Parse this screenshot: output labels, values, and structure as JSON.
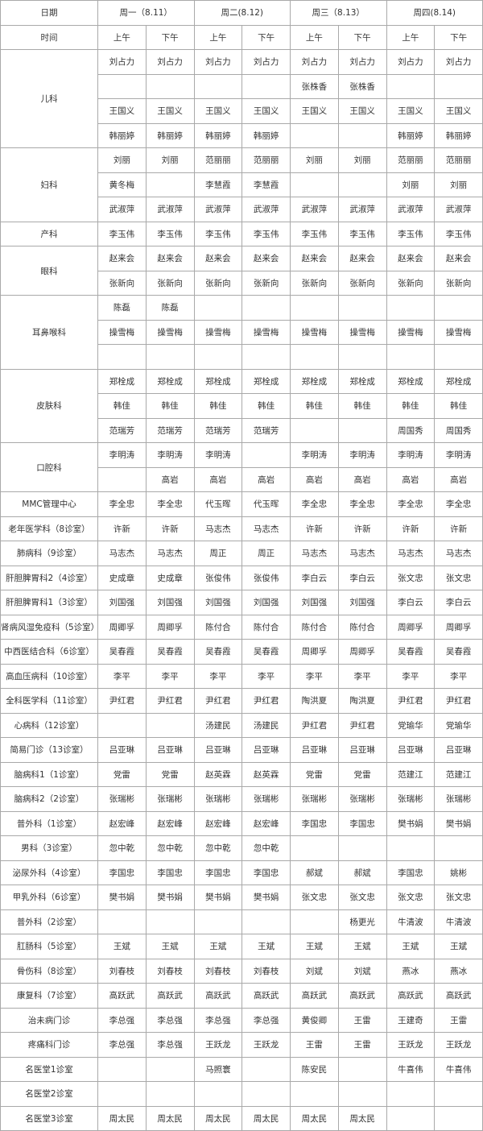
{
  "header": {
    "date_label": "日期",
    "days": [
      "周一（8.11）",
      "周二(8.12)",
      "周三（8.13）",
      "周四(8.14)"
    ],
    "time_label": "时间",
    "periods": [
      "上午",
      "下午",
      "上午",
      "下午",
      "上午",
      "下午",
      "上午",
      "下午"
    ]
  },
  "groups": [
    {
      "dept": "儿科",
      "rows": [
        [
          "刘占力",
          "刘占力",
          "刘占力",
          "刘占力",
          "刘占力",
          "刘占力",
          "刘占力",
          "刘占力"
        ],
        [
          "",
          "",
          "",
          "",
          "张株香",
          "张株香",
          "",
          ""
        ],
        [
          "王国义",
          "王国义",
          "王国义",
          "王国义",
          "王国义",
          "王国义",
          "王国义",
          "王国义"
        ],
        [
          "韩丽婷",
          "韩丽婷",
          "韩丽婷",
          "韩丽婷",
          "",
          "",
          "韩丽婷",
          "韩丽婷"
        ]
      ]
    },
    {
      "dept": "妇科",
      "rows": [
        [
          "刘丽",
          "刘丽",
          "范丽丽",
          "范丽丽",
          "刘丽",
          "刘丽",
          "范丽丽",
          "范丽丽"
        ],
        [
          "黄冬梅",
          "",
          "李慧霞",
          "李慧霞",
          "",
          "",
          "刘丽",
          "刘丽"
        ],
        [
          "武淑萍",
          "武淑萍",
          "武淑萍",
          "武淑萍",
          "武淑萍",
          "武淑萍",
          "武淑萍",
          "武淑萍"
        ]
      ]
    },
    {
      "dept": "产科",
      "rows": [
        [
          "李玉伟",
          "李玉伟",
          "李玉伟",
          "李玉伟",
          "李玉伟",
          "李玉伟",
          "李玉伟",
          "李玉伟"
        ]
      ]
    },
    {
      "dept": "眼科",
      "rows": [
        [
          "赵来会",
          "赵来会",
          "赵来会",
          "赵来会",
          "赵来会",
          "赵来会",
          "赵来会",
          "赵来会"
        ],
        [
          "张新向",
          "张新向",
          "张新向",
          "张新向",
          "张新向",
          "张新向",
          "张新向",
          "张新向"
        ]
      ]
    },
    {
      "dept": "耳鼻喉科",
      "rows": [
        [
          "陈磊",
          "陈磊",
          "",
          "",
          "",
          "",
          "",
          ""
        ],
        [
          "操雪梅",
          "操雪梅",
          "操雪梅",
          "操雪梅",
          "操雪梅",
          "操雪梅",
          "操雪梅",
          "操雪梅"
        ],
        [
          "",
          "",
          "",
          "",
          "",
          "",
          "",
          ""
        ]
      ]
    },
    {
      "dept": "皮肤科",
      "rows": [
        [
          "郑栓成",
          "郑栓成",
          "郑栓成",
          "郑栓成",
          "郑栓成",
          "郑栓成",
          "郑栓成",
          "郑栓成"
        ],
        [
          "韩佳",
          "韩佳",
          "韩佳",
          "韩佳",
          "韩佳",
          "韩佳",
          "韩佳",
          "韩佳"
        ],
        [
          "范瑞芳",
          "范瑞芳",
          "范瑞芳",
          "范瑞芳",
          "",
          "",
          "周国秀",
          "周国秀"
        ]
      ]
    },
    {
      "dept": "口腔科",
      "rows": [
        [
          "李明涛",
          "李明涛",
          "李明涛",
          "",
          "李明涛",
          "李明涛",
          "李明涛",
          "李明涛"
        ],
        [
          "",
          "高岩",
          "高岩",
          "高岩",
          "高岩",
          "高岩",
          "高岩",
          "高岩"
        ]
      ]
    },
    {
      "dept": "MMC管理中心",
      "rows": [
        [
          "李全忠",
          "李全忠",
          "代玉晖",
          "代玉晖",
          "李全忠",
          "李全忠",
          "李全忠",
          "李全忠"
        ]
      ]
    },
    {
      "dept": "老年医学科（8诊室）",
      "rows": [
        [
          "许新",
          "许新",
          "马志杰",
          "马志杰",
          "许新",
          "许新",
          "许新",
          "许新"
        ]
      ]
    },
    {
      "dept": "肺病科（9诊室）",
      "rows": [
        [
          "马志杰",
          "马志杰",
          "周正",
          "周正",
          "马志杰",
          "马志杰",
          "马志杰",
          "马志杰"
        ]
      ]
    },
    {
      "dept": "肝胆脾胃科2（4诊室）",
      "rows": [
        [
          "史成章",
          "史成章",
          "张俊伟",
          "张俊伟",
          "李白云",
          "李白云",
          "张文忠",
          "张文忠"
        ]
      ]
    },
    {
      "dept": "肝胆脾胃科1（3诊室）",
      "rows": [
        [
          "刘国强",
          "刘国强",
          "刘国强",
          "刘国强",
          "刘国强",
          "刘国强",
          "李白云",
          "李白云"
        ]
      ]
    },
    {
      "dept": "肾病风湿免疫科（5诊室）",
      "rows": [
        [
          "周卿孚",
          "周卿孚",
          "陈付合",
          "陈付合",
          "陈付合",
          "陈付合",
          "周卿孚",
          "周卿孚"
        ]
      ]
    },
    {
      "dept": "中西医结合科（6诊室）",
      "rows": [
        [
          "吴春霞",
          "吴春霞",
          "吴春霞",
          "吴春霞",
          "周卿孚",
          "周卿孚",
          "吴春霞",
          "吴春霞"
        ]
      ]
    },
    {
      "dept": "高血压病科（10诊室）",
      "rows": [
        [
          "李平",
          "李平",
          "李平",
          "李平",
          "李平",
          "李平",
          "李平",
          "李平"
        ]
      ]
    },
    {
      "dept": "全科医学科（11诊室）",
      "rows": [
        [
          "尹红君",
          "尹红君",
          "尹红君",
          "尹红君",
          "陶洪夏",
          "陶洪夏",
          "尹红君",
          "尹红君"
        ]
      ]
    },
    {
      "dept": "心病科（12诊室）",
      "rows": [
        [
          "",
          "",
          "汤建民",
          "汤建民",
          "尹红君",
          "尹红君",
          "党瑜华",
          "党瑜华"
        ]
      ]
    },
    {
      "dept": "简易门诊（13诊室）",
      "rows": [
        [
          "吕亚琳",
          "吕亚琳",
          "吕亚琳",
          "吕亚琳",
          "吕亚琳",
          "吕亚琳",
          "吕亚琳",
          "吕亚琳"
        ]
      ]
    },
    {
      "dept": "脑病科1（1诊室）",
      "rows": [
        [
          "党雷",
          "党雷",
          "赵英霖",
          "赵英霖",
          "党雷",
          "党雷",
          "范建江",
          "范建江"
        ]
      ]
    },
    {
      "dept": "脑病科2（2诊室）",
      "rows": [
        [
          "张瑞彬",
          "张瑞彬",
          "张瑞彬",
          "张瑞彬",
          "张瑞彬",
          "张瑞彬",
          "张瑞彬",
          "张瑞彬"
        ]
      ]
    },
    {
      "dept": "普外科（1诊室）",
      "rows": [
        [
          "赵宏峰",
          "赵宏峰",
          "赵宏峰",
          "赵宏峰",
          "李国忠",
          "李国忠",
          "樊书娟",
          "樊书娟"
        ]
      ]
    },
    {
      "dept": "男科（3诊室）",
      "rows": [
        [
          "忽中乾",
          "忽中乾",
          "忽中乾",
          "忽中乾",
          "",
          "",
          "",
          ""
        ]
      ]
    },
    {
      "dept": "泌尿外科（4诊室）",
      "rows": [
        [
          "李国忠",
          "李国忠",
          "李国忠",
          "李国忠",
          "郝斌",
          "郝斌",
          "李国忠",
          "姚彬"
        ]
      ]
    },
    {
      "dept": "甲乳外科（6诊室）",
      "rows": [
        [
          "樊书娟",
          "樊书娟",
          "樊书娟",
          "樊书娟",
          "张文忠",
          "张文忠",
          "张文忠",
          "张文忠"
        ]
      ]
    },
    {
      "dept": "普外科（2诊室）",
      "rows": [
        [
          "",
          "",
          "",
          "",
          "",
          "杨更光",
          "牛清波",
          "牛清波"
        ]
      ]
    },
    {
      "dept": "肛肠科（5诊室）",
      "rows": [
        [
          "王斌",
          "王斌",
          "王斌",
          "王斌",
          "王斌",
          "王斌",
          "王斌",
          "王斌"
        ]
      ]
    },
    {
      "dept": "骨伤科（8诊室）",
      "rows": [
        [
          "刘春枝",
          "刘春枝",
          "刘春枝",
          "刘春枝",
          "刘斌",
          "刘斌",
          "燕冰",
          "燕冰"
        ]
      ]
    },
    {
      "dept": "康复科（7诊室）",
      "rows": [
        [
          "高跃武",
          "高跃武",
          "高跃武",
          "高跃武",
          "高跃武",
          "高跃武",
          "高跃武",
          "高跃武"
        ]
      ]
    },
    {
      "dept": "治未病门诊",
      "rows": [
        [
          "李总强",
          "李总强",
          "李总强",
          "李总强",
          "黄俊卿",
          "王雷",
          "王建奇",
          "王雷"
        ]
      ]
    },
    {
      "dept": "疼痛科门诊",
      "rows": [
        [
          "李总强",
          "李总强",
          "王跃龙",
          "王跃龙",
          "王雷",
          "王雷",
          "王跃龙",
          "王跃龙"
        ]
      ]
    },
    {
      "dept": "名医堂1诊室",
      "rows": [
        [
          "",
          "",
          "马照寰",
          "",
          "陈安民",
          "",
          "牛喜伟",
          "牛喜伟"
        ]
      ]
    },
    {
      "dept": "名医堂2诊室",
      "rows": [
        [
          "",
          "",
          "",
          "",
          "",
          "",
          "",
          ""
        ]
      ]
    },
    {
      "dept": "名医堂3诊室",
      "rows": [
        [
          "周太民",
          "周太民",
          "周太民",
          "周太民",
          "周太民",
          "周太民",
          "",
          ""
        ]
      ]
    }
  ]
}
